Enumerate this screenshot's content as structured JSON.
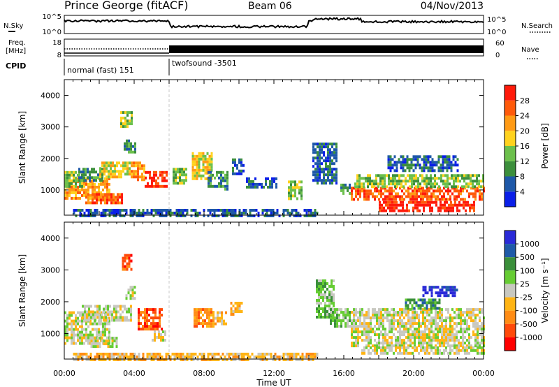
{
  "header": {
    "station": "Prince George (fitACF)",
    "beam": "Beam 06",
    "date": "04/Nov/2013"
  },
  "noise_panel": {
    "left_label": "N.Sky",
    "right_label": "N.Search",
    "left_ticks": [
      "10^5",
      "10^0"
    ],
    "right_ticks": [
      "10^5",
      "10^0"
    ]
  },
  "freq_panel": {
    "left_label_1": "Freq.",
    "left_label_2": "[MHz]",
    "right_label": "Nave",
    "left_ticks": [
      "18",
      "8"
    ],
    "right_ticks": [
      "60",
      "0"
    ]
  },
  "cpid": {
    "label": "CPID",
    "segments": [
      {
        "start_hour": 0,
        "end_hour": 6,
        "name": "normal (fast) 151"
      },
      {
        "start_hour": 6,
        "end_hour": 24,
        "name": "twofsound -3501"
      }
    ]
  },
  "colors": {
    "power": [
      "#0a1fe8",
      "#1e58a8",
      "#3c8f3c",
      "#6cc04c",
      "#ffd21e",
      "#ff9a14",
      "#ff5a0a",
      "#ff1a0a"
    ],
    "velocity": [
      "#2a2ad8",
      "#1f5aa8",
      "#3a8f3a",
      "#66cc33",
      "#c8c8c0",
      "#ffb414",
      "#ff8c14",
      "#ff4a0a",
      "#ff0000"
    ]
  },
  "chart_data": [
    {
      "type": "heatmap",
      "name": "power",
      "ylabel": "Slant Range [km]",
      "ylim": [
        200,
        4500
      ],
      "yticks": [
        1000,
        2000,
        3000,
        4000
      ],
      "xlim": [
        0,
        24
      ],
      "colorbar": {
        "label": "Power [dB]",
        "range": [
          0,
          32
        ],
        "ticks": [
          4,
          8,
          12,
          16,
          20,
          24,
          28
        ]
      },
      "patches": [
        {
          "t": [
            0.0,
            2.6
          ],
          "r": [
            700,
            1400
          ],
          "level": 5
        },
        {
          "t": [
            0.0,
            1.2
          ],
          "r": [
            1100,
            1600
          ],
          "level": 3
        },
        {
          "t": [
            0.8,
            2.2
          ],
          "r": [
            1300,
            1700
          ],
          "level": 2
        },
        {
          "t": [
            1.2,
            3.3
          ],
          "r": [
            600,
            900
          ],
          "level": 6
        },
        {
          "t": [
            2.0,
            3.8
          ],
          "r": [
            1400,
            1900
          ],
          "level": 4
        },
        {
          "t": [
            3.2,
            3.9
          ],
          "r": [
            3000,
            3500
          ],
          "level": 3
        },
        {
          "t": [
            3.4,
            4.1
          ],
          "r": [
            2200,
            2600
          ],
          "level": 2
        },
        {
          "t": [
            3.8,
            4.6
          ],
          "r": [
            1300,
            1900
          ],
          "level": 5
        },
        {
          "t": [
            4.6,
            5.9
          ],
          "r": [
            1100,
            1600
          ],
          "level": 7
        },
        {
          "t": [
            6.2,
            7.0
          ],
          "r": [
            1200,
            1700
          ],
          "level": 3
        },
        {
          "t": [
            7.3,
            8.4
          ],
          "r": [
            1400,
            2200
          ],
          "level": 4
        },
        {
          "t": [
            8.2,
            9.3
          ],
          "r": [
            1000,
            1600
          ],
          "level": 2
        },
        {
          "t": [
            9.6,
            10.3
          ],
          "r": [
            1500,
            2000
          ],
          "level": 1
        },
        {
          "t": [
            10.4,
            12.2
          ],
          "r": [
            1100,
            1400
          ],
          "level": 1
        },
        {
          "t": [
            12.8,
            13.6
          ],
          "r": [
            700,
            1300
          ],
          "level": 3
        },
        {
          "t": [
            14.2,
            15.6
          ],
          "r": [
            1200,
            2500
          ],
          "level": 1
        },
        {
          "t": [
            15.8,
            16.4
          ],
          "r": [
            900,
            1200
          ],
          "level": 2
        },
        {
          "t": [
            16.4,
            24.0
          ],
          "r": [
            700,
            1100
          ],
          "level": 6
        },
        {
          "t": [
            16.6,
            24.0
          ],
          "r": [
            1100,
            1500
          ],
          "level": 3
        },
        {
          "t": [
            18.0,
            23.5
          ],
          "r": [
            350,
            650
          ],
          "level": 7
        },
        {
          "t": [
            18.5,
            22.5
          ],
          "r": [
            1600,
            2100
          ],
          "level": 1
        },
        {
          "t": [
            0.5,
            14.5
          ],
          "r": [
            200,
            400
          ],
          "level": 1
        }
      ]
    },
    {
      "type": "heatmap",
      "name": "velocity",
      "ylabel": "Slant Range [km]",
      "xlabel": "Time UT",
      "ylim": [
        200,
        4500
      ],
      "yticks": [
        1000,
        2000,
        3000,
        4000
      ],
      "xlim": [
        0,
        24
      ],
      "xticks": [
        "00:00",
        "04:00",
        "08:00",
        "12:00",
        "16:00",
        "20:00",
        "00:00"
      ],
      "colorbar": {
        "label": "Velocity [m s⁻¹]",
        "ticks": [
          "1000",
          "500",
          "100",
          "25",
          "-25",
          "-100",
          "-500",
          "-1000"
        ]
      },
      "patches": [
        {
          "t": [
            0.0,
            2.6
          ],
          "r": [
            700,
            1700
          ],
          "level": 4
        },
        {
          "t": [
            1.0,
            3.8
          ],
          "r": [
            1400,
            1900
          ],
          "level": 4
        },
        {
          "t": [
            1.5,
            3.0
          ],
          "r": [
            600,
            900
          ],
          "level": 4
        },
        {
          "t": [
            3.3,
            3.9
          ],
          "r": [
            3000,
            3500
          ],
          "level": 7
        },
        {
          "t": [
            3.5,
            4.0
          ],
          "r": [
            2100,
            2500
          ],
          "level": 4
        },
        {
          "t": [
            4.2,
            5.6
          ],
          "r": [
            1100,
            1800
          ],
          "level": 7
        },
        {
          "t": [
            5.0,
            5.8
          ],
          "r": [
            800,
            1100
          ],
          "level": 4
        },
        {
          "t": [
            7.4,
            8.6
          ],
          "r": [
            1200,
            1800
          ],
          "level": 6
        },
        {
          "t": [
            8.6,
            9.3
          ],
          "r": [
            1300,
            1700
          ],
          "level": 5
        },
        {
          "t": [
            9.5,
            10.2
          ],
          "r": [
            1600,
            2000
          ],
          "level": 5
        },
        {
          "t": [
            14.4,
            15.4
          ],
          "r": [
            1500,
            2700
          ],
          "level": 3
        },
        {
          "t": [
            15.2,
            16.4
          ],
          "r": [
            1200,
            1800
          ],
          "level": 3
        },
        {
          "t": [
            16.4,
            24.0
          ],
          "r": [
            600,
            1800
          ],
          "level": 4
        },
        {
          "t": [
            17.0,
            24.0
          ],
          "r": [
            350,
            600
          ],
          "level": 4
        },
        {
          "t": [
            19.5,
            21.5
          ],
          "r": [
            1800,
            2100
          ],
          "level": 2
        },
        {
          "t": [
            20.5,
            22.5
          ],
          "r": [
            2200,
            2500
          ],
          "level": 0
        },
        {
          "t": [
            0.5,
            14.5
          ],
          "r": [
            200,
            400
          ],
          "level": 5
        }
      ]
    }
  ]
}
